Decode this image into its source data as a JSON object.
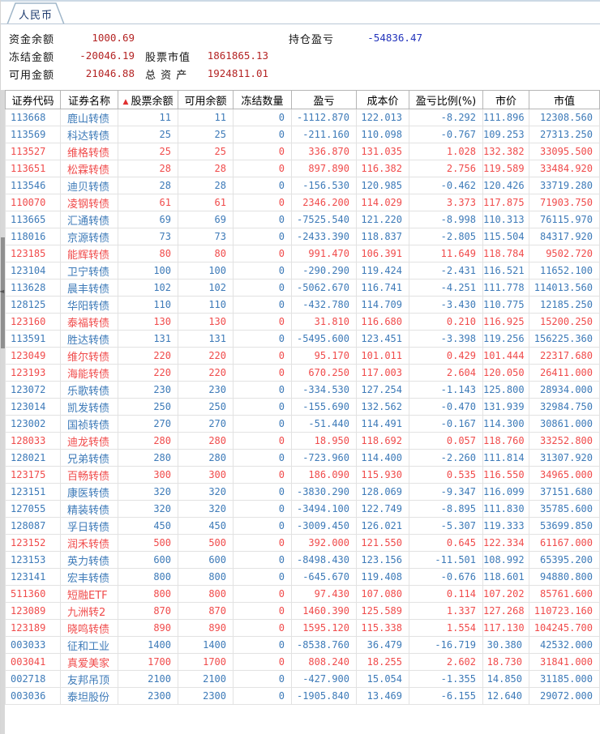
{
  "tab": {
    "label": "人民币"
  },
  "summary": {
    "fund_balance_label": "资金余额",
    "fund_balance_value": "1000.69",
    "frozen_label": "冻结金额",
    "frozen_value": "-20046.19",
    "available_label": "可用金额",
    "available_value": "21046.88",
    "stock_value_label": "股票市值",
    "stock_value_value": "1861865.13",
    "total_assets_label": "总 资 产",
    "total_assets_value": "1924811.01",
    "position_pnl_label": "持仓盈亏",
    "position_pnl_value": "-54836.47"
  },
  "icons": {
    "sort_asc": "▲",
    "collapse_left": "◄"
  },
  "colors": {
    "profit_text": "#f04b4b",
    "loss_text": "#3d7ab8",
    "summary_value_red": "#b42424",
    "summary_value_blue": "#2233bb",
    "sort_icon_red": "#e03030"
  },
  "table": {
    "columns": [
      "证券代码",
      "证券名称",
      "股票余额",
      "可用余额",
      "冻结数量",
      "盈亏",
      "成本价",
      "盈亏比例(%)",
      "市价",
      "市值"
    ],
    "sort": {
      "column": "股票余额",
      "direction": "asc"
    },
    "rows": [
      {
        "code": "113668",
        "name": "鹿山转债",
        "balance": "11",
        "available": "11",
        "frozen": "0",
        "pnl": "-1112.870",
        "cost": "122.013",
        "pnl_pct": "-8.292",
        "price": "111.896",
        "value": "12308.560"
      },
      {
        "code": "113569",
        "name": "科达转债",
        "balance": "25",
        "available": "25",
        "frozen": "0",
        "pnl": "-211.160",
        "cost": "110.098",
        "pnl_pct": "-0.767",
        "price": "109.253",
        "value": "27313.250"
      },
      {
        "code": "113527",
        "name": "维格转债",
        "balance": "25",
        "available": "25",
        "frozen": "0",
        "pnl": "336.870",
        "cost": "131.035",
        "pnl_pct": "1.028",
        "price": "132.382",
        "value": "33095.500"
      },
      {
        "code": "113651",
        "name": "松霖转债",
        "balance": "28",
        "available": "28",
        "frozen": "0",
        "pnl": "897.890",
        "cost": "116.382",
        "pnl_pct": "2.756",
        "price": "119.589",
        "value": "33484.920"
      },
      {
        "code": "113546",
        "name": "迪贝转债",
        "balance": "28",
        "available": "28",
        "frozen": "0",
        "pnl": "-156.530",
        "cost": "120.985",
        "pnl_pct": "-0.462",
        "price": "120.426",
        "value": "33719.280"
      },
      {
        "code": "110070",
        "name": "凌钢转债",
        "balance": "61",
        "available": "61",
        "frozen": "0",
        "pnl": "2346.200",
        "cost": "114.029",
        "pnl_pct": "3.373",
        "price": "117.875",
        "value": "71903.750"
      },
      {
        "code": "113665",
        "name": "汇通转债",
        "balance": "69",
        "available": "69",
        "frozen": "0",
        "pnl": "-7525.540",
        "cost": "121.220",
        "pnl_pct": "-8.998",
        "price": "110.313",
        "value": "76115.970"
      },
      {
        "code": "118016",
        "name": "京源转债",
        "balance": "73",
        "available": "73",
        "frozen": "0",
        "pnl": "-2433.390",
        "cost": "118.837",
        "pnl_pct": "-2.805",
        "price": "115.504",
        "value": "84317.920"
      },
      {
        "code": "123185",
        "name": "能辉转债",
        "balance": "80",
        "available": "80",
        "frozen": "0",
        "pnl": "991.470",
        "cost": "106.391",
        "pnl_pct": "11.649",
        "price": "118.784",
        "value": "9502.720"
      },
      {
        "code": "123104",
        "name": "卫宁转债",
        "balance": "100",
        "available": "100",
        "frozen": "0",
        "pnl": "-290.290",
        "cost": "119.424",
        "pnl_pct": "-2.431",
        "price": "116.521",
        "value": "11652.100"
      },
      {
        "code": "113628",
        "name": "晨丰转债",
        "balance": "102",
        "available": "102",
        "frozen": "0",
        "pnl": "-5062.670",
        "cost": "116.741",
        "pnl_pct": "-4.251",
        "price": "111.778",
        "value": "114013.560"
      },
      {
        "code": "128125",
        "name": "华阳转债",
        "balance": "110",
        "available": "110",
        "frozen": "0",
        "pnl": "-432.780",
        "cost": "114.709",
        "pnl_pct": "-3.430",
        "price": "110.775",
        "value": "12185.250"
      },
      {
        "code": "123160",
        "name": "泰福转债",
        "balance": "130",
        "available": "130",
        "frozen": "0",
        "pnl": "31.810",
        "cost": "116.680",
        "pnl_pct": "0.210",
        "price": "116.925",
        "value": "15200.250"
      },
      {
        "code": "113591",
        "name": "胜达转债",
        "balance": "131",
        "available": "131",
        "frozen": "0",
        "pnl": "-5495.600",
        "cost": "123.451",
        "pnl_pct": "-3.398",
        "price": "119.256",
        "value": "156225.360"
      },
      {
        "code": "123049",
        "name": "维尔转债",
        "balance": "220",
        "available": "220",
        "frozen": "0",
        "pnl": "95.170",
        "cost": "101.011",
        "pnl_pct": "0.429",
        "price": "101.444",
        "value": "22317.680"
      },
      {
        "code": "123193",
        "name": "海能转债",
        "balance": "220",
        "available": "220",
        "frozen": "0",
        "pnl": "670.250",
        "cost": "117.003",
        "pnl_pct": "2.604",
        "price": "120.050",
        "value": "26411.000"
      },
      {
        "code": "123072",
        "name": "乐歌转债",
        "balance": "230",
        "available": "230",
        "frozen": "0",
        "pnl": "-334.530",
        "cost": "127.254",
        "pnl_pct": "-1.143",
        "price": "125.800",
        "value": "28934.000"
      },
      {
        "code": "123014",
        "name": "凯发转债",
        "balance": "250",
        "available": "250",
        "frozen": "0",
        "pnl": "-155.690",
        "cost": "132.562",
        "pnl_pct": "-0.470",
        "price": "131.939",
        "value": "32984.750"
      },
      {
        "code": "123002",
        "name": "国祯转债",
        "balance": "270",
        "available": "270",
        "frozen": "0",
        "pnl": "-51.440",
        "cost": "114.491",
        "pnl_pct": "-0.167",
        "price": "114.300",
        "value": "30861.000"
      },
      {
        "code": "128033",
        "name": "迪龙转债",
        "balance": "280",
        "available": "280",
        "frozen": "0",
        "pnl": "18.950",
        "cost": "118.692",
        "pnl_pct": "0.057",
        "price": "118.760",
        "value": "33252.800"
      },
      {
        "code": "128021",
        "name": "兄弟转债",
        "balance": "280",
        "available": "280",
        "frozen": "0",
        "pnl": "-723.960",
        "cost": "114.400",
        "pnl_pct": "-2.260",
        "price": "111.814",
        "value": "31307.920"
      },
      {
        "code": "123175",
        "name": "百畅转债",
        "balance": "300",
        "available": "300",
        "frozen": "0",
        "pnl": "186.090",
        "cost": "115.930",
        "pnl_pct": "0.535",
        "price": "116.550",
        "value": "34965.000"
      },
      {
        "code": "123151",
        "name": "康医转债",
        "balance": "320",
        "available": "320",
        "frozen": "0",
        "pnl": "-3830.290",
        "cost": "128.069",
        "pnl_pct": "-9.347",
        "price": "116.099",
        "value": "37151.680"
      },
      {
        "code": "127055",
        "name": "精装转债",
        "balance": "320",
        "available": "320",
        "frozen": "0",
        "pnl": "-3494.100",
        "cost": "122.749",
        "pnl_pct": "-8.895",
        "price": "111.830",
        "value": "35785.600"
      },
      {
        "code": "128087",
        "name": "孚日转债",
        "balance": "450",
        "available": "450",
        "frozen": "0",
        "pnl": "-3009.450",
        "cost": "126.021",
        "pnl_pct": "-5.307",
        "price": "119.333",
        "value": "53699.850"
      },
      {
        "code": "123152",
        "name": "润禾转债",
        "balance": "500",
        "available": "500",
        "frozen": "0",
        "pnl": "392.000",
        "cost": "121.550",
        "pnl_pct": "0.645",
        "price": "122.334",
        "value": "61167.000"
      },
      {
        "code": "123153",
        "name": "英力转债",
        "balance": "600",
        "available": "600",
        "frozen": "0",
        "pnl": "-8498.430",
        "cost": "123.156",
        "pnl_pct": "-11.501",
        "price": "108.992",
        "value": "65395.200"
      },
      {
        "code": "123141",
        "name": "宏丰转债",
        "balance": "800",
        "available": "800",
        "frozen": "0",
        "pnl": "-645.670",
        "cost": "119.408",
        "pnl_pct": "-0.676",
        "price": "118.601",
        "value": "94880.800"
      },
      {
        "code": "511360",
        "name": "短融ETF",
        "balance": "800",
        "available": "800",
        "frozen": "0",
        "pnl": "97.430",
        "cost": "107.080",
        "pnl_pct": "0.114",
        "price": "107.202",
        "value": "85761.600"
      },
      {
        "code": "123089",
        "name": "九洲转2",
        "balance": "870",
        "available": "870",
        "frozen": "0",
        "pnl": "1460.390",
        "cost": "125.589",
        "pnl_pct": "1.337",
        "price": "127.268",
        "value": "110723.160"
      },
      {
        "code": "123189",
        "name": "晓鸣转债",
        "balance": "890",
        "available": "890",
        "frozen": "0",
        "pnl": "1595.120",
        "cost": "115.338",
        "pnl_pct": "1.554",
        "price": "117.130",
        "value": "104245.700"
      },
      {
        "code": "003033",
        "name": "征和工业",
        "balance": "1400",
        "available": "1400",
        "frozen": "0",
        "pnl": "-8538.760",
        "cost": "36.479",
        "pnl_pct": "-16.719",
        "price": "30.380",
        "value": "42532.000"
      },
      {
        "code": "003041",
        "name": "真爱美家",
        "balance": "1700",
        "available": "1700",
        "frozen": "0",
        "pnl": "808.240",
        "cost": "18.255",
        "pnl_pct": "2.602",
        "price": "18.730",
        "value": "31841.000"
      },
      {
        "code": "002718",
        "name": "友邦吊顶",
        "balance": "2100",
        "available": "2100",
        "frozen": "0",
        "pnl": "-427.900",
        "cost": "15.054",
        "pnl_pct": "-1.355",
        "price": "14.850",
        "value": "31185.000"
      },
      {
        "code": "003036",
        "name": "泰坦股份",
        "balance": "2300",
        "available": "2300",
        "frozen": "0",
        "pnl": "-1905.840",
        "cost": "13.469",
        "pnl_pct": "-6.155",
        "price": "12.640",
        "value": "29072.000"
      }
    ]
  }
}
